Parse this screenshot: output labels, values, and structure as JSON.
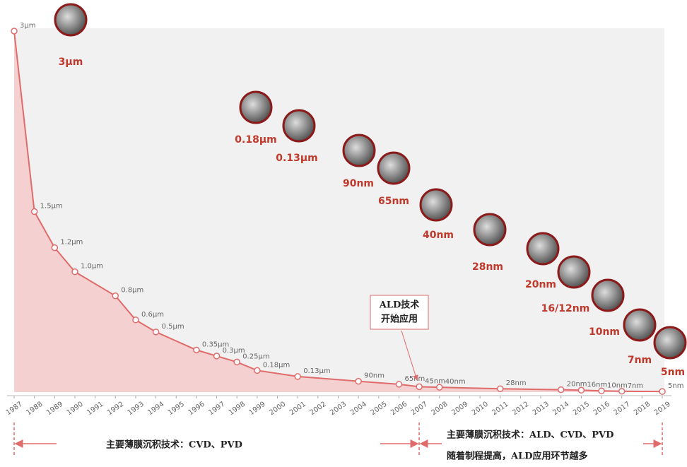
{
  "chart_data": {
    "type": "line",
    "x": [
      1987,
      1988,
      1989,
      1990,
      1992,
      1993,
      1994,
      1996,
      1997,
      1998,
      1999,
      2001,
      2004,
      2006,
      2007,
      2008,
      2011,
      2014,
      2015,
      2016,
      2017,
      2019
    ],
    "series": [
      {
        "color": "#e06b6b",
        "values": [
          3,
          1.5,
          1.2,
          1.0,
          0.8,
          0.6,
          0.5,
          0.35,
          0.3,
          0.25,
          0.18,
          0.13,
          0.09,
          0.065,
          0.045,
          0.04,
          0.028,
          0.02,
          0.016,
          0.01,
          0.007,
          0.005
        ],
        "value_labels": [
          "3μm",
          "1.5μm",
          "1.2μm",
          "1.0μm",
          "0.8μm",
          "0.6μm",
          "0.5μm",
          "0.35μm",
          "0.3μm",
          "0.25μm",
          "0.18μm",
          "0.13μm",
          "90nm",
          "65nm",
          "45nm",
          "40nm",
          "28nm",
          "20nm",
          "16nm",
          "10nm",
          "7nm",
          "5nm"
        ]
      }
    ],
    "area_color": "#f5d0d0",
    "xlim": [
      1987,
      2019
    ],
    "xticks": [
      1987,
      1988,
      1989,
      1990,
      1991,
      1992,
      1993,
      1994,
      1995,
      1996,
      1997,
      1998,
      1999,
      2000,
      2001,
      2002,
      2003,
      2004,
      2005,
      2006,
      2007,
      2008,
      2009,
      2010,
      2011,
      2012,
      2013,
      2014,
      2015,
      2016,
      2017,
      2018,
      2019
    ],
    "ylim": [
      0,
      3
    ],
    "node_images": [
      "3μm",
      "0.18μm",
      "0.13μm",
      "90nm",
      "65nm",
      "40nm",
      "28nm",
      "20nm",
      "16/12nm",
      "10nm",
      "7nm",
      "5nm"
    ],
    "annotations": {
      "ald_start": [
        "ALD技术",
        "开始应用"
      ],
      "era1": "主要薄膜沉积技术：CVD、PVD",
      "era2": "主要薄膜沉积技术：ALD、CVD、PVD",
      "era2_note": "随着制程提高，ALD应用环节越多"
    }
  }
}
